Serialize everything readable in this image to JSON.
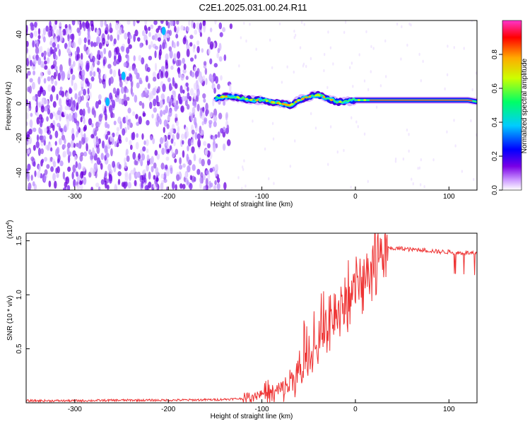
{
  "page_title": "C2E1.2025.031.00.24.R11",
  "chart_data": [
    {
      "type": "heatmap",
      "title": "C2E1.2025.031.00.24.R11",
      "xlabel": "Height of straight line (km)",
      "ylabel": "Frequency (Hz)",
      "xlim": [
        -352,
        130
      ],
      "ylim": [
        -50,
        48
      ],
      "x_ticks": [
        -300,
        -200,
        -100,
        0,
        100
      ],
      "x_tick_labels": [
        "-300",
        "-200",
        "-100",
        "0",
        "100"
      ],
      "y_ticks": [
        -40,
        -20,
        0,
        20,
        40
      ],
      "y_tick_labels": [
        "-40",
        "-20",
        "0",
        "20",
        "40"
      ],
      "grid": false,
      "colorbar": {
        "label": "Normalized spectral amplitude",
        "range": [
          0,
          1
        ],
        "ticks": [
          0.0,
          0.2,
          0.4,
          0.6,
          0.8
        ],
        "tick_labels": [
          "0.0",
          "0.2",
          "0.4",
          "0.6",
          "0.8"
        ],
        "colormap": [
          "#ffffff",
          "#cc99ff",
          "#7a00e6",
          "#0000ff",
          "#00ccff",
          "#00ff66",
          "#ccff00",
          "#ffaa00",
          "#ff0000",
          "#ff33cc"
        ]
      },
      "trace": {
        "x": [
          -150,
          -140,
          -130,
          -120,
          -110,
          -100,
          -90,
          -80,
          -70,
          -60,
          -50,
          -40,
          -30,
          -20,
          -10,
          0,
          20,
          40,
          60,
          80,
          100,
          120,
          130
        ],
        "y": [
          3,
          4,
          4,
          3,
          2,
          2,
          1,
          0,
          -1,
          2,
          4,
          5,
          3,
          1,
          1,
          2,
          2,
          2,
          2,
          2,
          2,
          2,
          1
        ]
      },
      "scatter_features": [
        {
          "x": -265,
          "y": 1,
          "amplitude": 0.4
        },
        {
          "x": -248,
          "y": 16,
          "amplitude": 0.45
        },
        {
          "x": -205,
          "y": 42,
          "amplitude": 0.4
        }
      ]
    },
    {
      "type": "line",
      "xlabel": "Height of straight line (km)",
      "ylabel": "SNR (10 * v/v)",
      "y_multiplier": "(x10",
      "y_multiplier_exp": "4",
      "xlim": [
        -352,
        130
      ],
      "ylim": [
        0,
        1.57
      ],
      "x_ticks": [
        -300,
        -200,
        -100,
        0,
        100
      ],
      "x_tick_labels": [
        "-300",
        "-200",
        "-100",
        "0",
        "100"
      ],
      "y_ticks": [
        0.5,
        1.0,
        1.5
      ],
      "y_tick_labels": [
        "0.5",
        "1.0",
        "1.5"
      ],
      "grid": false,
      "series": [
        {
          "color": "#ee3333",
          "x": [
            -352,
            -300,
            -250,
            -200,
            -150,
            -120,
            -105,
            -95,
            -85,
            -75,
            -65,
            -55,
            -45,
            -38,
            -30,
            -25,
            -20,
            -15,
            -10,
            -5,
            0,
            5,
            10,
            15,
            20,
            25,
            30,
            35,
            40,
            50,
            60,
            70,
            80,
            90,
            100,
            110,
            120,
            130
          ],
          "y": [
            0.02,
            0.02,
            0.025,
            0.025,
            0.03,
            0.04,
            0.08,
            0.1,
            0.1,
            0.15,
            0.25,
            0.35,
            0.45,
            0.55,
            0.65,
            0.75,
            0.85,
            0.95,
            1.02,
            1.05,
            1.1,
            1.15,
            1.2,
            1.22,
            1.28,
            1.35,
            1.4,
            1.43,
            1.43,
            1.43,
            1.42,
            1.42,
            1.41,
            1.4,
            1.4,
            1.39,
            1.39,
            1.38
          ]
        }
      ]
    }
  ]
}
